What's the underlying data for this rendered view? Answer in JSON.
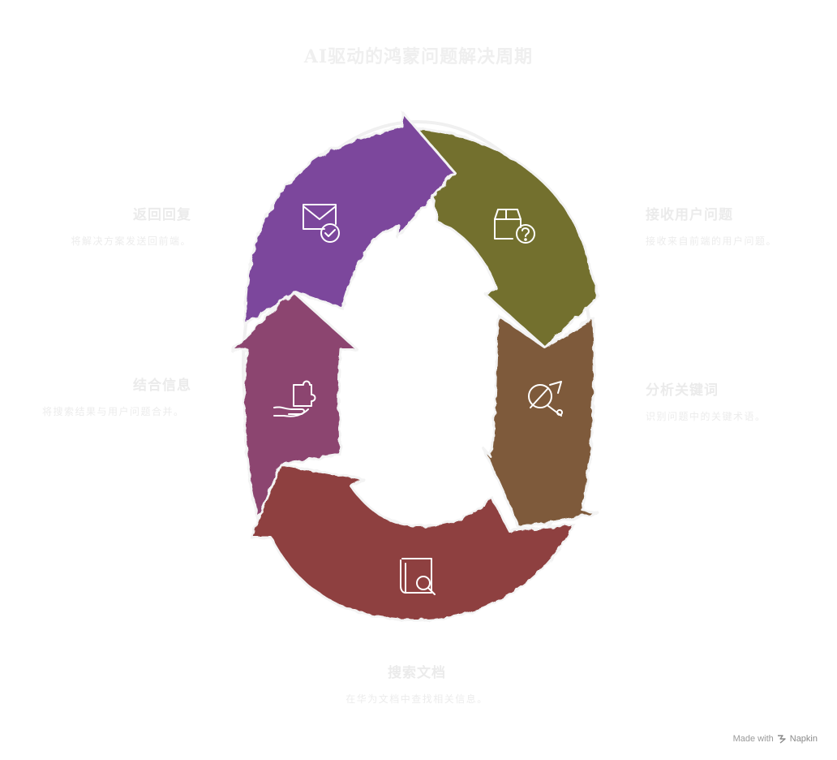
{
  "title": "AI驱动的鸿蒙问题解决周期",
  "steps": [
    {
      "id": "receive",
      "title": "接收用户问题",
      "desc": "接收来自前端的用户问题。",
      "color": "#736f2f",
      "icon": "package-question-icon"
    },
    {
      "id": "analyze",
      "title": "分析关键词",
      "desc": "识别问题中的关键术语。",
      "color": "#7e5a3a",
      "icon": "intersect-arrow-icon"
    },
    {
      "id": "search",
      "title": "搜索文档",
      "desc": "在华为文档中查找相关信息。",
      "color": "#8e4140",
      "icon": "book-search-icon"
    },
    {
      "id": "combine",
      "title": "结合信息",
      "desc": "将搜索结果与用户问题合并。",
      "color": "#8c4470",
      "icon": "hand-puzzle-icon"
    },
    {
      "id": "return",
      "title": "返回回复",
      "desc": "将解决方案发送回前端。",
      "color": "#7b479c",
      "icon": "mail-check-icon"
    }
  ],
  "footer": {
    "made_with": "Made with",
    "brand": "Napkin"
  }
}
